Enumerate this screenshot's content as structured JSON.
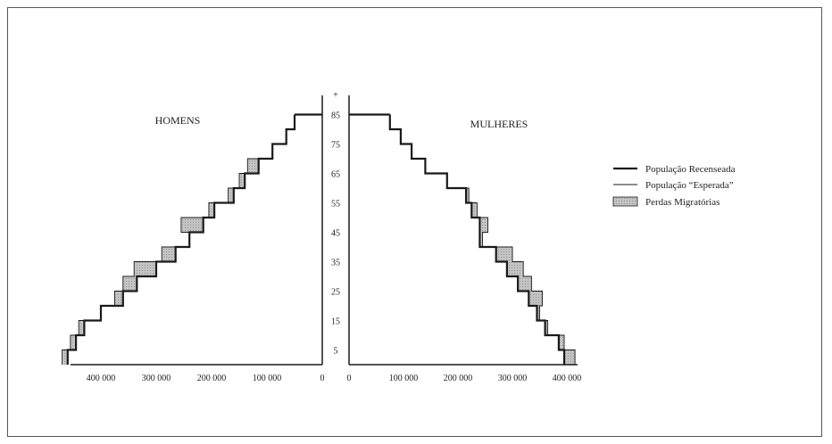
{
  "chart_data": {
    "type": "population-pyramid",
    "left_title": "HOMENS",
    "right_title": "MULHERES",
    "age_ticks": [
      "5",
      "15",
      "25",
      "35",
      "45",
      "55",
      "65",
      "75",
      "85",
      "+"
    ],
    "x_ticks_left": [
      "400 000",
      "300 000",
      "200 000",
      "100 000",
      "0"
    ],
    "x_ticks_right": [
      "0",
      "100 000",
      "200 000",
      "300 000",
      "400 000"
    ],
    "xlim": [
      0,
      450000
    ],
    "age_range": [
      0,
      90
    ],
    "legend": [
      {
        "label": "População Recenseada",
        "style": "thick-line"
      },
      {
        "label": "População “Esperada”",
        "style": "thin-line"
      },
      {
        "label": "Perdas Migratórias",
        "style": "hatched-box"
      }
    ],
    "men": {
      "ages": [
        0,
        5,
        10,
        15,
        20,
        25,
        30,
        35,
        40,
        45,
        50,
        55,
        60,
        65,
        70,
        75,
        80
      ],
      "recenseada": [
        460000,
        445000,
        430000,
        400000,
        360000,
        335000,
        300000,
        265000,
        240000,
        215000,
        195000,
        160000,
        140000,
        115000,
        90000,
        65000,
        50000
      ],
      "esperada": [
        470000,
        455000,
        440000,
        400000,
        375000,
        360000,
        340000,
        290000,
        240000,
        255000,
        205000,
        170000,
        150000,
        135000,
        90000,
        65000,
        50000
      ]
    },
    "women": {
      "ages": [
        0,
        5,
        10,
        15,
        20,
        25,
        30,
        35,
        40,
        45,
        50,
        55,
        60,
        65,
        70,
        75,
        80
      ],
      "recenseada": [
        395000,
        385000,
        360000,
        345000,
        330000,
        310000,
        290000,
        270000,
        240000,
        240000,
        225000,
        215000,
        180000,
        140000,
        115000,
        95000,
        75000
      ],
      "esperada": [
        415000,
        395000,
        365000,
        350000,
        355000,
        335000,
        320000,
        300000,
        245000,
        255000,
        235000,
        220000,
        180000,
        140000,
        115000,
        95000,
        75000
      ]
    },
    "colors": {
      "line": "#1a1a1a",
      "loss_fill": "#b5b5b5"
    }
  }
}
